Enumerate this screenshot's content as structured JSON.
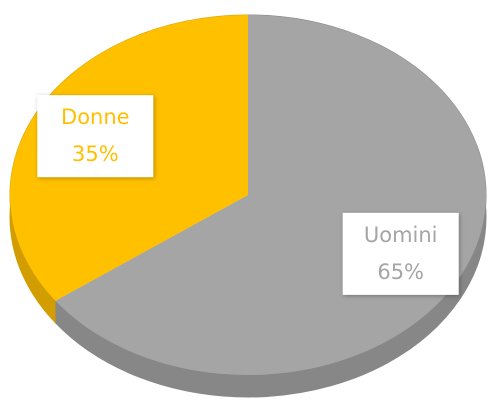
{
  "chart_data": {
    "type": "pie",
    "categories": [
      "Uomini",
      "Donne"
    ],
    "values": [
      65,
      35
    ],
    "value_labels": [
      "65%",
      "35%"
    ],
    "colors": [
      "#a5a5a5",
      "#ffc000"
    ]
  }
}
